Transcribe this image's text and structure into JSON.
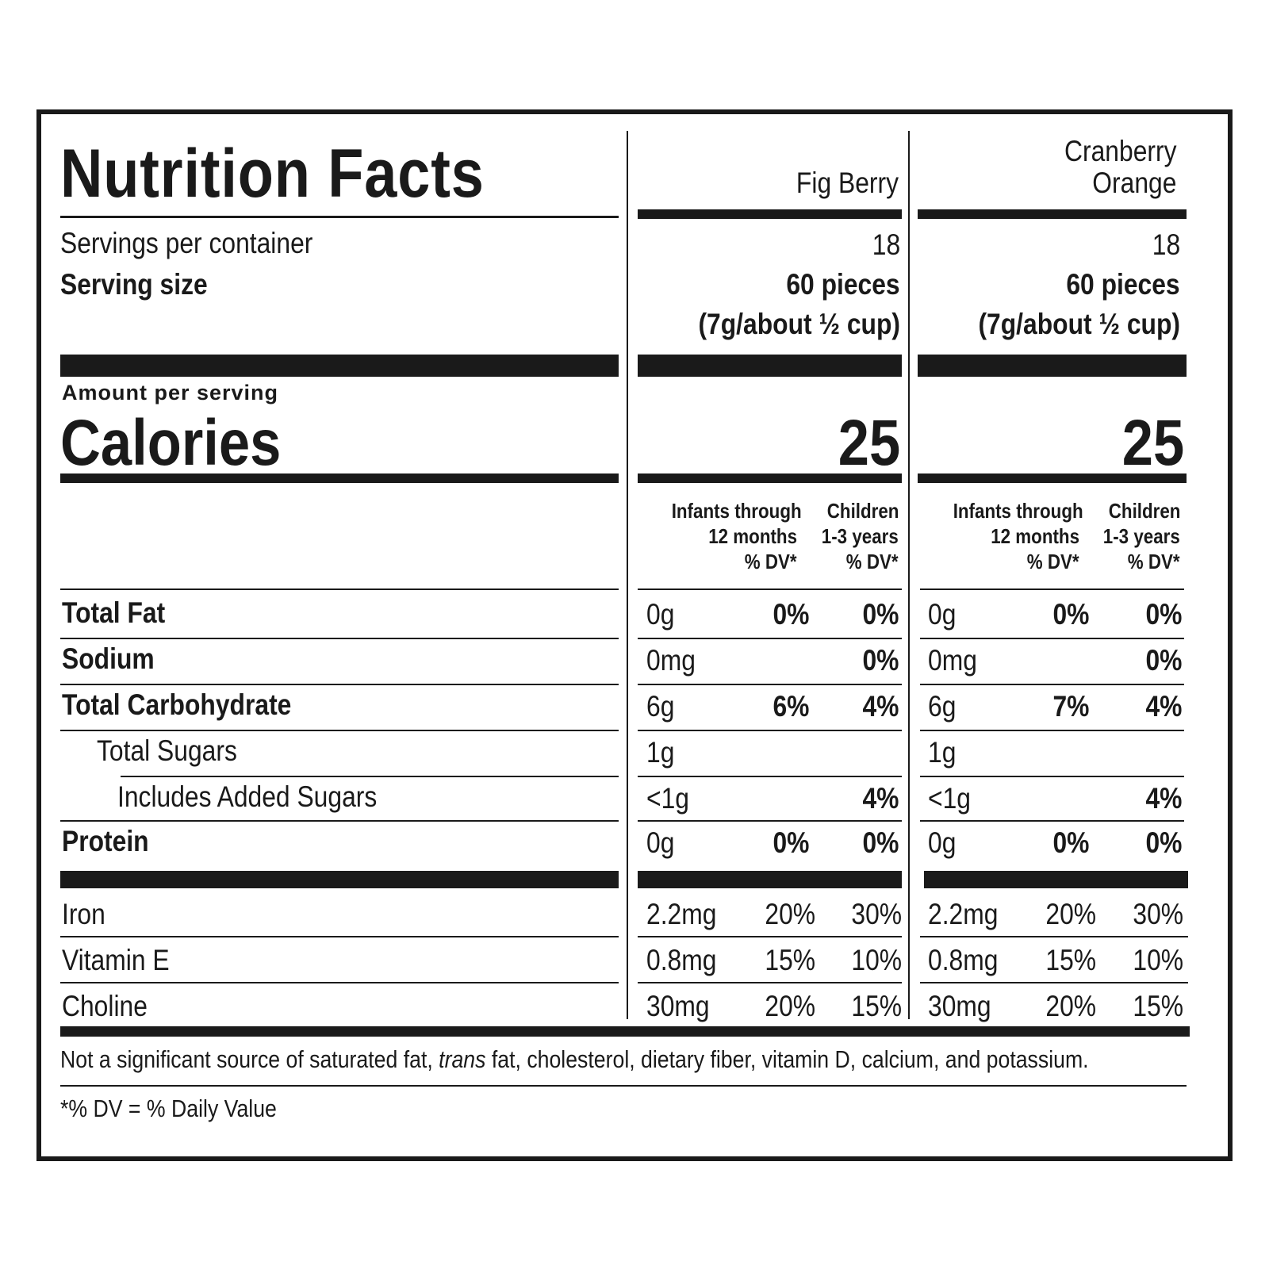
{
  "header": {
    "title": "Nutrition Facts",
    "columns": [
      {
        "name_line1": "",
        "name_line2": "Fig Berry"
      },
      {
        "name_line1": "Cranberry",
        "name_line2": "Orange"
      }
    ]
  },
  "servings": {
    "per_container_label": "Servings per container",
    "serving_size_label": "Serving size",
    "columns": [
      {
        "per_container": "18",
        "size_line1": "60 pieces",
        "size_line2": "(7g/about ½ cup)"
      },
      {
        "per_container": "18",
        "size_line1": "60 pieces",
        "size_line2": "(7g/about ½ cup)"
      }
    ]
  },
  "calories": {
    "amount_label": "Amount per serving",
    "label": "Calories",
    "columns": [
      "25",
      "25"
    ]
  },
  "dv_headers": {
    "infants": [
      "Infants through",
      "12 months",
      "% DV*"
    ],
    "children": [
      "Children",
      "1-3 years",
      "% DV*"
    ]
  },
  "nutrients": [
    {
      "label": "Total Fat",
      "cols": [
        [
          "0g",
          "0%",
          "0%"
        ],
        [
          "0g",
          "0%",
          "0%"
        ]
      ]
    },
    {
      "label": "Sodium",
      "cols": [
        [
          "0mg",
          "",
          "0%"
        ],
        [
          "0mg",
          "",
          "0%"
        ]
      ]
    },
    {
      "label": "Total Carbohydrate",
      "cols": [
        [
          "6g",
          "6%",
          "4%"
        ],
        [
          "6g",
          "7%",
          "4%"
        ]
      ]
    },
    {
      "label": "Total Sugars",
      "cols": [
        [
          "1g",
          "",
          ""
        ],
        [
          "1g",
          "",
          ""
        ]
      ]
    },
    {
      "label": "Includes Added Sugars",
      "cols": [
        [
          "<1g",
          "",
          "4%"
        ],
        [
          "<1g",
          "",
          "4%"
        ]
      ]
    },
    {
      "label": "Protein",
      "cols": [
        [
          "0g",
          "0%",
          "0%"
        ],
        [
          "0g",
          "0%",
          "0%"
        ]
      ]
    }
  ],
  "vitamins": [
    {
      "label": "Iron",
      "cols": [
        [
          "2.2mg",
          "20%",
          "30%"
        ],
        [
          "2.2mg",
          "20%",
          "30%"
        ]
      ]
    },
    {
      "label": "Vitamin E",
      "cols": [
        [
          "0.8mg",
          "15%",
          "10%"
        ],
        [
          "0.8mg",
          "15%",
          "10%"
        ]
      ]
    },
    {
      "label": "Choline",
      "cols": [
        [
          "30mg",
          "20%",
          "15%"
        ],
        [
          "30mg",
          "20%",
          "15%"
        ]
      ]
    }
  ],
  "footnote": {
    "pre": "Not a significant source of saturated fat, ",
    "italic": "trans",
    "post": " fat, cholesterol, dietary fiber, vitamin D, calcium, and potassium.",
    "dv": "*% DV = % Daily Value"
  }
}
